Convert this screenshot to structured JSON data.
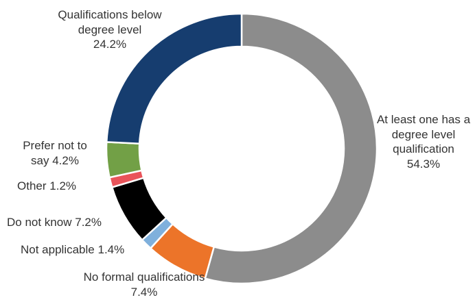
{
  "chart_data": {
    "type": "donut",
    "categories": [
      "At least one has a degree level qualification",
      "No formal qualifications",
      "Not applicable",
      "Do not know",
      "Other",
      "Prefer not to say",
      "Qualifications below degree level"
    ],
    "values": [
      54.3,
      7.4,
      1.4,
      7.2,
      1.2,
      4.2,
      24.2
    ],
    "value_labels": [
      "54.3%",
      "7.4%",
      "1.4%",
      "7.2%",
      "1.2%",
      "4.2%",
      "24.2%"
    ],
    "colors": [
      "#8c8c8c",
      "#ec7429",
      "#7fb0dc",
      "#000000",
      "#e9545a",
      "#72a046",
      "#163d6f"
    ]
  }
}
